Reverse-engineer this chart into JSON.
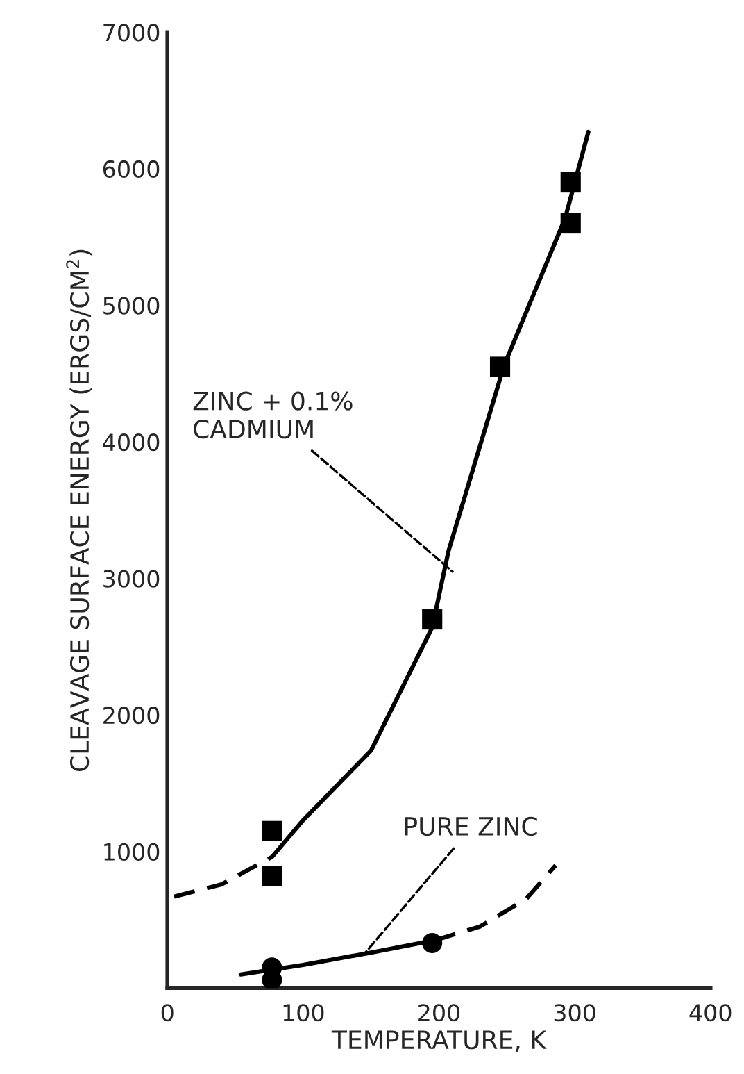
{
  "chart_data": {
    "type": "scatter",
    "xlabel": "TEMPERATURE, K",
    "ylabel": "CLEAVAGE SURFACE ENERGY (ERGS/CM$^{2}$)",
    "xlim": [
      0,
      400
    ],
    "ylim": [
      0,
      7000
    ],
    "xticks": [
      0,
      100,
      200,
      300,
      400
    ],
    "yticks": [
      1000,
      2000,
      3000,
      4000,
      5000,
      6000,
      7000
    ],
    "grid": false,
    "legend": false,
    "series": [
      {
        "marker": "square",
        "color": "#000000",
        "x": [
          77,
          77,
          195,
          245,
          297,
          297
        ],
        "values": [
          1150,
          820,
          2700,
          4550,
          5900,
          5600
        ]
      },
      {
        "marker": "circle",
        "color": "#000000",
        "x": [
          77,
          77,
          195
        ],
        "values": [
          150,
          60,
          330
        ]
      },
      {
        "type": "line",
        "line_style": "dashed",
        "color": "#000000",
        "x": [
          5,
          40,
          77
        ],
        "values": [
          670,
          760,
          960
        ]
      },
      {
        "type": "line",
        "line_style": "solid",
        "color": "#000000",
        "x": [
          77,
          100,
          150,
          195,
          207,
          248,
          293,
          310
        ],
        "values": [
          960,
          1230,
          1740,
          2640,
          3200,
          4560,
          5640,
          6270
        ]
      },
      {
        "type": "line",
        "line_style": "solid",
        "color": "#000000",
        "x": [
          54,
          100,
          150,
          197
        ],
        "values": [
          100,
          170,
          260,
          350
        ]
      },
      {
        "type": "line",
        "line_style": "dashed",
        "color": "#000000",
        "x": [
          197,
          230,
          264,
          286
        ],
        "values": [
          350,
          450,
          650,
          900
        ]
      }
    ],
    "annotations": [
      {
        "text": "ZINC + 0.1%\nCADMIUM",
        "x": 210,
        "y": 3050
      },
      {
        "text": "PURE ZINC",
        "x": 145,
        "y": 250
      }
    ]
  }
}
